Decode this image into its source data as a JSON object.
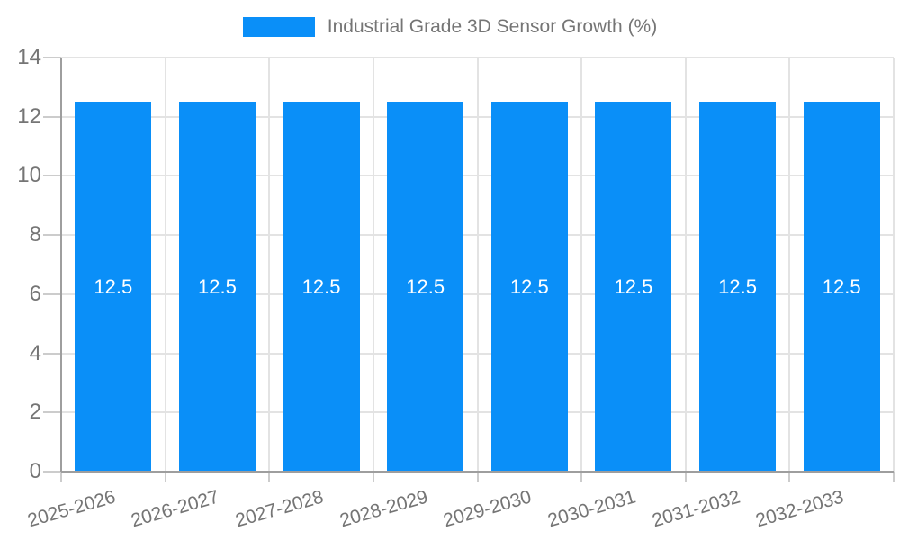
{
  "chart_data": {
    "type": "bar",
    "title": "Industrial Grade 3D Sensor Growth (%)",
    "legend_position": "top",
    "categories": [
      "2025-2026",
      "2026-2027",
      "2027-2028",
      "2028-2029",
      "2029-2030",
      "2030-2031",
      "2031-2032",
      "2032-2033"
    ],
    "values": [
      12.5,
      12.5,
      12.5,
      12.5,
      12.5,
      12.5,
      12.5,
      12.5
    ],
    "bar_labels": [
      "12.5",
      "12.5",
      "12.5",
      "12.5",
      "12.5",
      "12.5",
      "12.5",
      "12.5"
    ],
    "xlabel": "",
    "ylabel": "",
    "ylim": [
      0,
      14
    ],
    "yticks": [
      0,
      2,
      4,
      6,
      8,
      10,
      12,
      14
    ],
    "grid": true,
    "colors": {
      "bar": "#0a8ff8",
      "bar_label": "#ffffff",
      "axis_text": "#757575",
      "gridline": "#e3e3e3",
      "axis_line": "#9e9e9e",
      "tick_mark": "#cccccc",
      "background": "#ffffff"
    }
  }
}
